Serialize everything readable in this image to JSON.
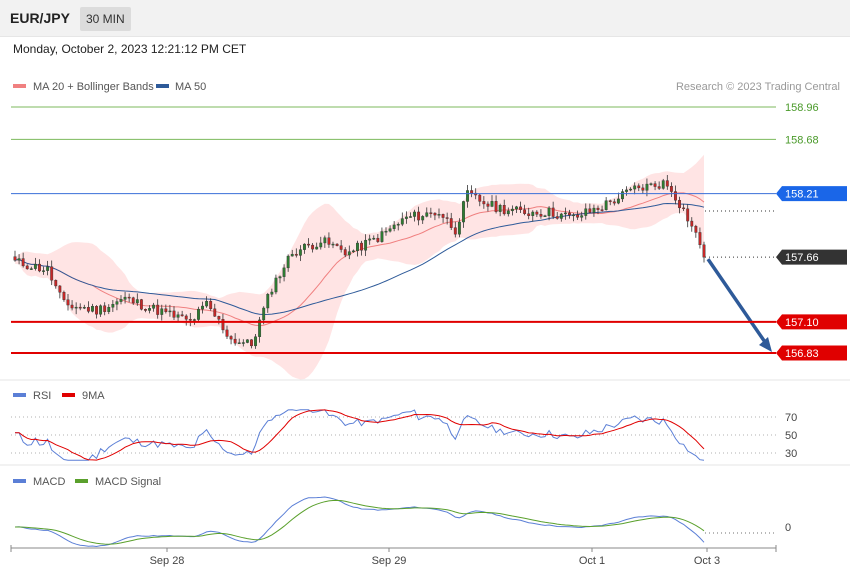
{
  "header": {
    "pair": "EUR/JPY",
    "timeframe": "30 MIN"
  },
  "datetime": "Monday, October 2, 2023 12:21:12 PM CET",
  "copyright": "Research © 2023 Trading Central",
  "colors": {
    "ma20": "#f08080",
    "ma50": "#2e5a99",
    "band": "#ffd9d9",
    "up": "#2e7d32",
    "down": "#c62828",
    "green_level": "#7cba5c",
    "blue_level": "#3a6fd8",
    "red_level": "#e00000",
    "current_tag": "#333333",
    "arrow": "#2e5a99",
    "rsi": "#5b7fd6",
    "rsi_ma": "#e00000",
    "macd": "#5b7fd6",
    "macd_signal": "#5aa02c"
  },
  "chart_data": [
    {
      "type": "candlestick",
      "legend": [
        "MA 20 + Bollinger Bands",
        "MA 50"
      ],
      "x_ticks": [
        "Sep 28",
        "Sep 29",
        "Oct 1",
        "Oct 3"
      ],
      "ylim": [
        156.7,
        159.1
      ],
      "levels": [
        {
          "value": 158.96,
          "label": "158.96",
          "style": "green-thin"
        },
        {
          "value": 158.68,
          "label": "158.68",
          "style": "green-thin"
        },
        {
          "value": 158.21,
          "label": "158.21",
          "style": "blue-tag"
        },
        {
          "value": 157.66,
          "label": "157.66",
          "style": "current-tag"
        },
        {
          "value": 157.1,
          "label": "157.10",
          "style": "red-tag"
        },
        {
          "value": 156.83,
          "label": "156.83",
          "style": "red-tag"
        }
      ],
      "anchors": [
        [
          0,
          157.62
        ],
        [
          8,
          157.55
        ],
        [
          12,
          157.25
        ],
        [
          20,
          157.2
        ],
        [
          27,
          157.3
        ],
        [
          35,
          157.2
        ],
        [
          43,
          157.1
        ],
        [
          47,
          157.25
        ],
        [
          53,
          156.95
        ],
        [
          58,
          156.9
        ],
        [
          63,
          157.4
        ],
        [
          68,
          157.7
        ],
        [
          75,
          157.8
        ],
        [
          82,
          157.7
        ],
        [
          90,
          157.85
        ],
        [
          96,
          158.0
        ],
        [
          104,
          158.05
        ],
        [
          108,
          157.9
        ],
        [
          111,
          158.2
        ],
        [
          117,
          158.1
        ],
        [
          124,
          158.05
        ],
        [
          131,
          158.05
        ],
        [
          137,
          158.0
        ],
        [
          144,
          158.1
        ],
        [
          152,
          158.25
        ],
        [
          159,
          158.3
        ],
        [
          161,
          158.25
        ],
        [
          165,
          158.0
        ],
        [
          167,
          157.85
        ],
        [
          169,
          157.7
        ]
      ],
      "total_candles": 170,
      "projection": {
        "from": 157.66,
        "to": 156.83
      }
    },
    {
      "type": "line",
      "legend": [
        "RSI",
        "9MA"
      ],
      "levels": [
        {
          "value": 70,
          "label": "70"
        },
        {
          "value": 50,
          "label": "50"
        },
        {
          "value": 30,
          "label": "30"
        }
      ],
      "ylim": [
        20,
        80
      ]
    },
    {
      "type": "line",
      "legend": [
        "MACD",
        "MACD Signal"
      ],
      "levels": [
        {
          "value": 0,
          "label": "0"
        }
      ]
    }
  ]
}
